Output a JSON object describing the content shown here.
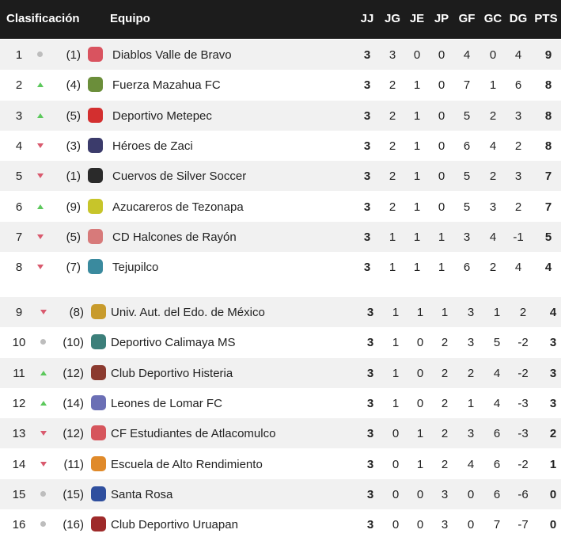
{
  "header": {
    "clasificacion": "Clasificación",
    "equipo": "Equipo",
    "columns": [
      "JJ",
      "JG",
      "JE",
      "JP",
      "GF",
      "GC",
      "DG",
      "PTS"
    ]
  },
  "colors": {
    "up": "#5cc85c",
    "down": "#d95a6e",
    "same": "#bdbdbd",
    "header_bg": "#1c1c1c"
  },
  "rows": [
    {
      "pos": "1",
      "trend": "same",
      "prev": "(1)",
      "logo_color": "#d9535f",
      "name": "Diablos Valle de Bravo",
      "stats": [
        "3",
        "3",
        "0",
        "0",
        "4",
        "0",
        "4",
        "9"
      ]
    },
    {
      "pos": "2",
      "trend": "up",
      "prev": "(4)",
      "logo_color": "#6b8e3a",
      "name": "Fuerza Mazahua FC",
      "stats": [
        "3",
        "2",
        "1",
        "0",
        "7",
        "1",
        "6",
        "8"
      ]
    },
    {
      "pos": "3",
      "trend": "up",
      "prev": "(5)",
      "logo_color": "#d32f2f",
      "name": "Deportivo Metepec",
      "stats": [
        "3",
        "2",
        "1",
        "0",
        "5",
        "2",
        "3",
        "8"
      ]
    },
    {
      "pos": "4",
      "trend": "down",
      "prev": "(3)",
      "logo_color": "#3b3b6b",
      "name": "Héroes de Zaci",
      "stats": [
        "3",
        "2",
        "1",
        "0",
        "6",
        "4",
        "2",
        "8"
      ]
    },
    {
      "pos": "5",
      "trend": "down",
      "prev": "(1)",
      "logo_color": "#2a2a2a",
      "name": "Cuervos de Silver Soccer",
      "stats": [
        "3",
        "2",
        "1",
        "0",
        "5",
        "2",
        "3",
        "7"
      ]
    },
    {
      "pos": "6",
      "trend": "up",
      "prev": "(9)",
      "logo_color": "#c7c52a",
      "name": "Azucareros de Tezonapa",
      "stats": [
        "3",
        "2",
        "1",
        "0",
        "5",
        "3",
        "2",
        "7"
      ]
    },
    {
      "pos": "7",
      "trend": "down",
      "prev": "(5)",
      "logo_color": "#d77a7a",
      "name": "CD Halcones de Rayón",
      "stats": [
        "3",
        "1",
        "1",
        "1",
        "3",
        "4",
        "-1",
        "5"
      ]
    },
    {
      "pos": "8",
      "trend": "down",
      "prev": "(7)",
      "logo_color": "#3a8a9e",
      "name": "Tejupilco",
      "stats": [
        "3",
        "1",
        "1",
        "1",
        "6",
        "2",
        "4",
        "4"
      ]
    },
    {
      "pos": "9",
      "trend": "down",
      "prev": "(8)",
      "logo_color": "#c89b2c",
      "name": "Univ. Aut. del Edo. de México",
      "stats": [
        "3",
        "1",
        "1",
        "1",
        "3",
        "1",
        "2",
        "4"
      ]
    },
    {
      "pos": "10",
      "trend": "same",
      "prev": "(10)",
      "logo_color": "#3c7f7a",
      "name": "Deportivo Calimaya MS",
      "stats": [
        "3",
        "1",
        "0",
        "2",
        "3",
        "5",
        "-2",
        "3"
      ]
    },
    {
      "pos": "11",
      "trend": "up",
      "prev": "(12)",
      "logo_color": "#8b3a2f",
      "name": "Club Deportivo Histeria",
      "stats": [
        "3",
        "1",
        "0",
        "2",
        "2",
        "4",
        "-2",
        "3"
      ]
    },
    {
      "pos": "12",
      "trend": "up",
      "prev": "(14)",
      "logo_color": "#6b6fb5",
      "name": "Leones de Lomar FC",
      "stats": [
        "3",
        "1",
        "0",
        "2",
        "1",
        "4",
        "-3",
        "3"
      ]
    },
    {
      "pos": "13",
      "trend": "down",
      "prev": "(12)",
      "logo_color": "#d6555c",
      "name": "CF Estudiantes de Atlacomulco",
      "stats": [
        "3",
        "0",
        "1",
        "2",
        "3",
        "6",
        "-3",
        "2"
      ]
    },
    {
      "pos": "14",
      "trend": "down",
      "prev": "(11)",
      "logo_color": "#e08a2a",
      "name": "Escuela de Alto Rendimiento",
      "stats": [
        "3",
        "0",
        "1",
        "2",
        "4",
        "6",
        "-2",
        "1"
      ]
    },
    {
      "pos": "15",
      "trend": "same",
      "prev": "(15)",
      "logo_color": "#2f4f9e",
      "name": "Santa Rosa",
      "stats": [
        "3",
        "0",
        "0",
        "3",
        "0",
        "6",
        "-6",
        "0"
      ]
    },
    {
      "pos": "16",
      "trend": "same",
      "prev": "(16)",
      "logo_color": "#9e2a2a",
      "name": "Club Deportivo Uruapan",
      "stats": [
        "3",
        "0",
        "0",
        "3",
        "0",
        "7",
        "-7",
        "0"
      ]
    }
  ]
}
